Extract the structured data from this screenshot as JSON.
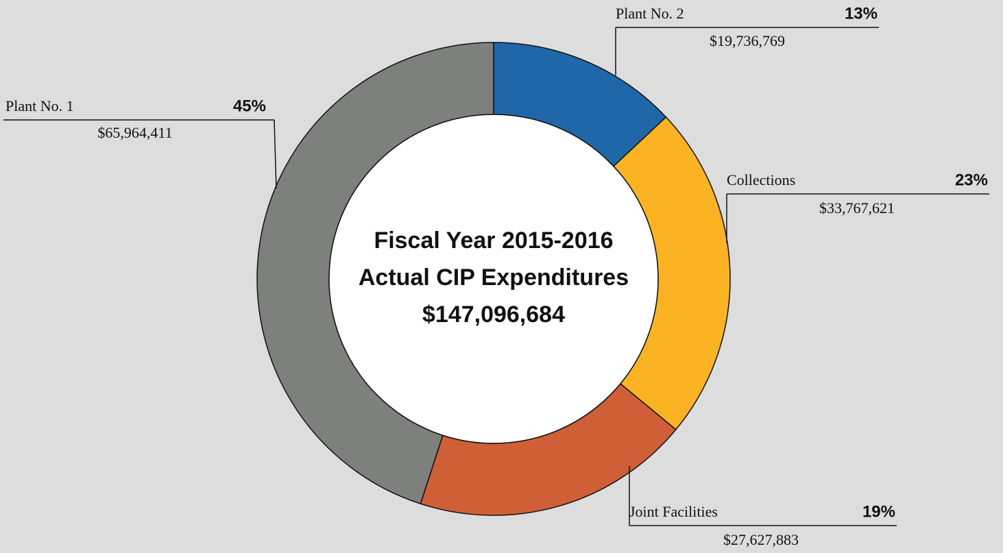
{
  "chart_data": {
    "type": "pie",
    "donut": true,
    "title": [
      "Fiscal Year 2015-2016",
      "Actual CIP Expenditures",
      "$147,096,684"
    ],
    "categories": [
      "Plant No. 2",
      "Collections",
      "Joint Facilities",
      "Plant No. 1"
    ],
    "values": [
      13,
      23,
      19,
      45
    ],
    "value_labels": [
      "13%",
      "23%",
      "19%",
      "45%"
    ],
    "amounts": [
      19736769,
      33767621,
      27627883,
      65964411
    ],
    "amount_labels": [
      "$19,736,769",
      "$33,767,621",
      "$27,627,883",
      "$65,964,411"
    ],
    "colors": [
      "#1f67a8",
      "#fbb323",
      "#cf5f36",
      "#7e807e"
    ]
  }
}
